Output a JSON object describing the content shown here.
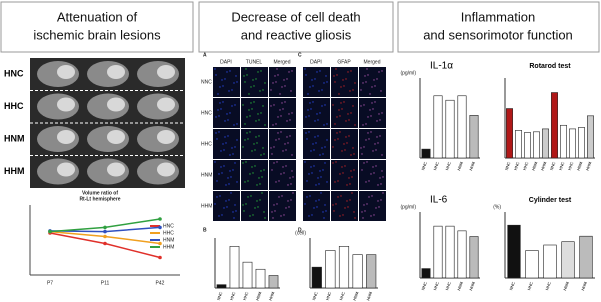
{
  "headers": [
    {
      "lines": [
        "Attenuation of",
        "ischemic brain lesions"
      ]
    },
    {
      "lines": [
        "Decrease of cell death",
        "and reactive gliosis"
      ]
    },
    {
      "lines": [
        "Inflammation",
        "and sensorimotor function"
      ]
    }
  ],
  "brain_rows": [
    "HNC",
    "HHC",
    "HNM",
    "HHM"
  ],
  "volume_chart": {
    "type": "line",
    "title_lines": [
      "Volume ratio of",
      "Rt-Lt hemisphere"
    ],
    "x": [
      "P7",
      "P11",
      "P42"
    ],
    "ylim": [
      0,
      100
    ],
    "series": [
      {
        "name": "HNC",
        "color": "#e0302a",
        "values": [
          60,
          45,
          25
        ]
      },
      {
        "name": "HHC",
        "color": "#f0a020",
        "values": [
          62,
          55,
          45
        ]
      },
      {
        "name": "HNM",
        "color": "#3050c0",
        "values": [
          63,
          62,
          68
        ]
      },
      {
        "name": "HHM",
        "color": "#30a040",
        "values": [
          62,
          68,
          80
        ]
      }
    ]
  },
  "micro": [
    {
      "label": "A",
      "columns": [
        "DAPI",
        "TUNEL",
        "Merged"
      ],
      "rows": [
        "NNC",
        "HNC",
        "HHC",
        "HNM",
        "HHM"
      ]
    },
    {
      "label": "C",
      "columns": [
        "DAPI",
        "GFAP",
        "Merged"
      ]
    }
  ],
  "bars": [
    {
      "type": "bar",
      "label": "B",
      "categories": [
        "NNC",
        "HNC",
        "HHC",
        "HNM",
        "HHM"
      ],
      "values": [
        8,
        100,
        62,
        45,
        30
      ],
      "ylim": [
        0,
        120
      ],
      "colors": [
        "#111",
        "#fff",
        "#fff",
        "#fff",
        "#bbb"
      ]
    },
    {
      "type": "bar",
      "label": "D",
      "unit": "(cell)",
      "categories": [
        "NNC",
        "HNC",
        "HHC",
        "HNM",
        "HHM"
      ],
      "values": [
        25,
        45,
        50,
        40,
        40
      ],
      "ylim": [
        0,
        60
      ],
      "colors": [
        "#111",
        "#fff",
        "#fff",
        "#fff",
        "#bbb"
      ]
    },
    {
      "type": "bar",
      "title": "IL-1α",
      "unit": "(pg/ml)",
      "categories": [
        "NNC",
        "HNC",
        "HHC",
        "HNM",
        "HHM"
      ],
      "values": [
        10,
        70,
        65,
        70,
        48
      ],
      "ylim": [
        0,
        90
      ],
      "colors": [
        "#111",
        "#fff",
        "#fff",
        "#fff",
        "#bbb"
      ]
    },
    {
      "type": "bar",
      "title": "Rotarod test",
      "categories": [
        "NNC",
        "HNC",
        "HHC",
        "HNM",
        "HHM",
        "NNC",
        "HNC",
        "HHC",
        "HNM",
        "HHM"
      ],
      "values": [
        68,
        38,
        35,
        36,
        40,
        90,
        45,
        40,
        42,
        58
      ],
      "ylim": [
        0,
        110
      ],
      "colors": [
        "#b01818",
        "#fff",
        "#fff",
        "#fff",
        "#ccc",
        "#b01818",
        "#fff",
        "#fff",
        "#fff",
        "#ccc"
      ]
    },
    {
      "type": "bar",
      "title": "IL-6",
      "unit": "(pg/ml)",
      "categories": [
        "NNC",
        "HNC",
        "HHC",
        "HNM",
        "HHM"
      ],
      "values": [
        10,
        55,
        55,
        50,
        44
      ],
      "ylim": [
        0,
        70
      ],
      "colors": [
        "#111",
        "#fff",
        "#fff",
        "#fff",
        "#bbb"
      ]
    },
    {
      "type": "bar",
      "title": "Cylinder test",
      "unit": "(%)",
      "categories": [
        "NNC",
        "HNC",
        "HHC",
        "HNM",
        "HHM"
      ],
      "values": [
        0.48,
        0.25,
        0.3,
        0.33,
        0.38
      ],
      "ylim": [
        0,
        0.6
      ],
      "colors": [
        "#111",
        "#fff",
        "#fff",
        "#ddd",
        "#bbb"
      ]
    }
  ]
}
